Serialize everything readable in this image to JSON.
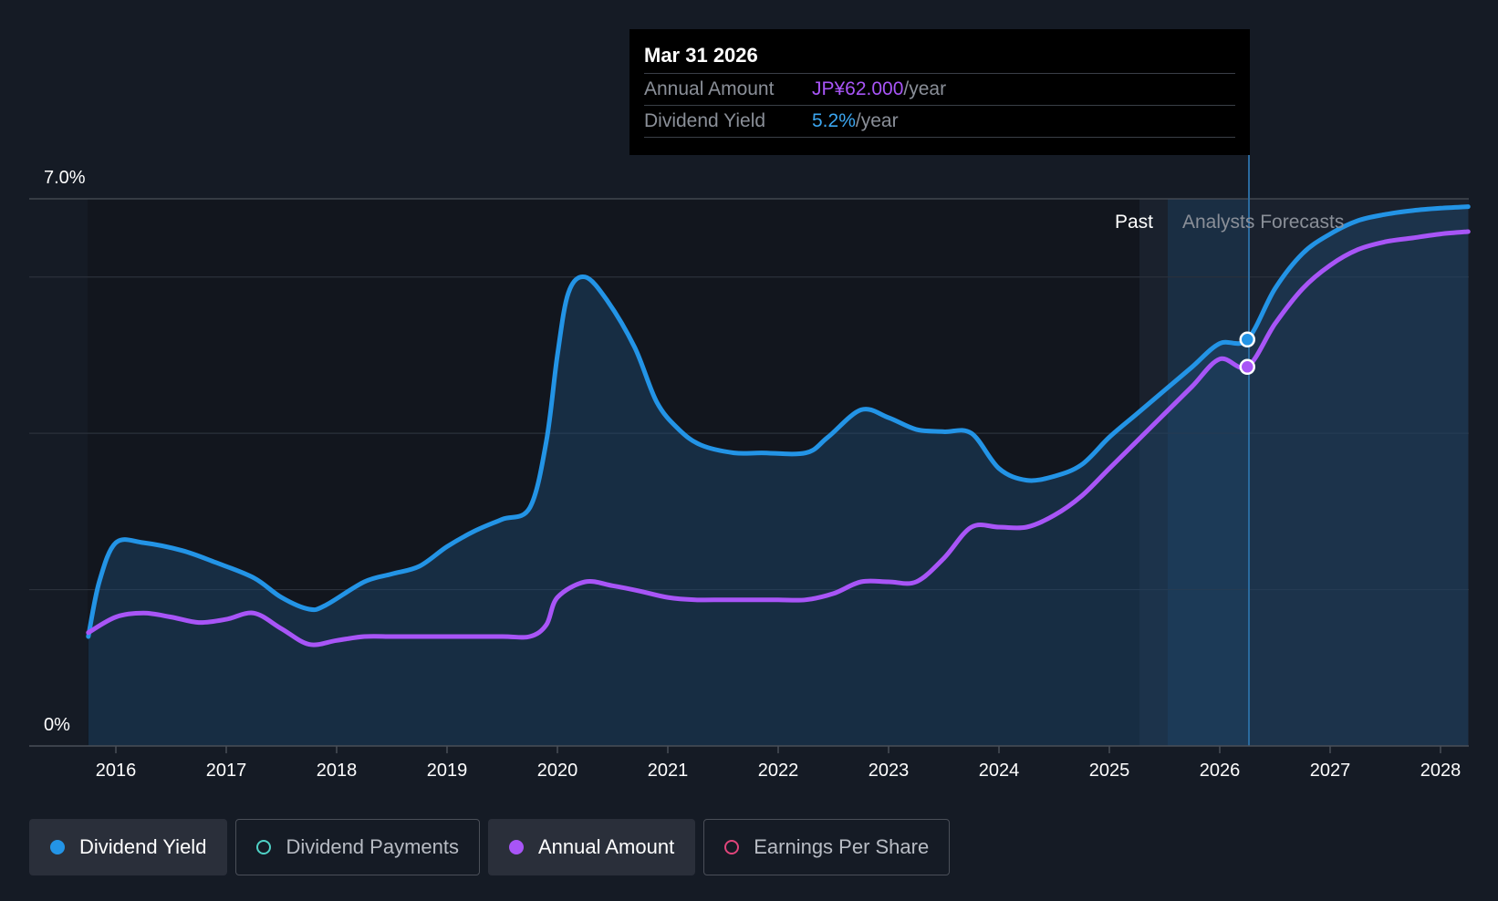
{
  "tooltip": {
    "date": "Mar 31 2026",
    "annual_amount_label": "Annual Amount",
    "annual_amount_value": "JP¥62.000",
    "annual_amount_unit": "/year",
    "dividend_yield_label": "Dividend Yield",
    "dividend_yield_value": "5.2%",
    "dividend_yield_unit": "/year"
  },
  "legend": [
    {
      "label": "Dividend Yield",
      "color": "#2394e6",
      "active": true,
      "filled": true
    },
    {
      "label": "Dividend Payments",
      "color": "#4fd1c5",
      "active": false,
      "filled": false
    },
    {
      "label": "Annual Amount",
      "color": "#a855f7",
      "active": true,
      "filled": true
    },
    {
      "label": "Earnings Per Share",
      "color": "#e0457b",
      "active": false,
      "filled": false
    }
  ],
  "chart_data": {
    "type": "line",
    "y_axis": {
      "top_label": "7.0%",
      "bottom_label": "0%",
      "ylim": [
        0,
        7
      ],
      "gridlines": [
        2,
        4,
        6,
        7
      ]
    },
    "x_axis": {
      "ticks": [
        "2016",
        "2017",
        "2018",
        "2019",
        "2020",
        "2021",
        "2022",
        "2023",
        "2024",
        "2025",
        "2026",
        "2027",
        "2028"
      ],
      "xlim": [
        2015.5,
        2028.25
      ]
    },
    "region_labels": {
      "past": "Past",
      "forecast": "Analysts Forecasts"
    },
    "forecast_start": 2025.25,
    "highlight_x": 2026.25,
    "series": [
      {
        "name": "Dividend Yield",
        "color": "#2394e6",
        "fill": true,
        "points": [
          [
            2015.75,
            1.4
          ],
          [
            2015.85,
            2.1
          ],
          [
            2016.0,
            2.6
          ],
          [
            2016.25,
            2.6
          ],
          [
            2016.6,
            2.5
          ],
          [
            2016.9,
            2.35
          ],
          [
            2017.25,
            2.15
          ],
          [
            2017.5,
            1.9
          ],
          [
            2017.75,
            1.75
          ],
          [
            2017.9,
            1.8
          ],
          [
            2018.25,
            2.1
          ],
          [
            2018.5,
            2.2
          ],
          [
            2018.75,
            2.3
          ],
          [
            2019.0,
            2.55
          ],
          [
            2019.25,
            2.75
          ],
          [
            2019.5,
            2.9
          ],
          [
            2019.75,
            3.05
          ],
          [
            2019.9,
            3.9
          ],
          [
            2020.0,
            5.0
          ],
          [
            2020.1,
            5.8
          ],
          [
            2020.25,
            6.0
          ],
          [
            2020.45,
            5.7
          ],
          [
            2020.7,
            5.1
          ],
          [
            2020.9,
            4.4
          ],
          [
            2021.1,
            4.05
          ],
          [
            2021.3,
            3.85
          ],
          [
            2021.6,
            3.75
          ],
          [
            2021.85,
            3.75
          ],
          [
            2022.25,
            3.75
          ],
          [
            2022.45,
            3.95
          ],
          [
            2022.75,
            4.3
          ],
          [
            2023.0,
            4.2
          ],
          [
            2023.25,
            4.05
          ],
          [
            2023.5,
            4.02
          ],
          [
            2023.75,
            4.0
          ],
          [
            2024.0,
            3.55
          ],
          [
            2024.25,
            3.4
          ],
          [
            2024.5,
            3.45
          ],
          [
            2024.75,
            3.6
          ],
          [
            2025.0,
            3.95
          ],
          [
            2025.25,
            4.25
          ],
          [
            2025.5,
            4.55
          ],
          [
            2025.75,
            4.85
          ],
          [
            2026.0,
            5.15
          ],
          [
            2026.25,
            5.2
          ],
          [
            2026.5,
            5.85
          ],
          [
            2026.75,
            6.3
          ],
          [
            2027.0,
            6.55
          ],
          [
            2027.25,
            6.72
          ],
          [
            2027.5,
            6.8
          ],
          [
            2027.75,
            6.85
          ],
          [
            2028.0,
            6.88
          ],
          [
            2028.25,
            6.9
          ]
        ]
      },
      {
        "name": "Annual Amount",
        "color": "#a855f7",
        "fill": false,
        "points": [
          [
            2015.75,
            1.45
          ],
          [
            2016.0,
            1.65
          ],
          [
            2016.25,
            1.7
          ],
          [
            2016.5,
            1.65
          ],
          [
            2016.75,
            1.58
          ],
          [
            2017.0,
            1.62
          ],
          [
            2017.25,
            1.7
          ],
          [
            2017.5,
            1.5
          ],
          [
            2017.75,
            1.3
          ],
          [
            2018.0,
            1.35
          ],
          [
            2018.25,
            1.4
          ],
          [
            2018.5,
            1.4
          ],
          [
            2018.75,
            1.4
          ],
          [
            2019.0,
            1.4
          ],
          [
            2019.5,
            1.4
          ],
          [
            2019.75,
            1.4
          ],
          [
            2019.9,
            1.55
          ],
          [
            2020.0,
            1.9
          ],
          [
            2020.25,
            2.1
          ],
          [
            2020.5,
            2.05
          ],
          [
            2020.75,
            1.98
          ],
          [
            2021.0,
            1.9
          ],
          [
            2021.25,
            1.87
          ],
          [
            2021.5,
            1.87
          ],
          [
            2021.75,
            1.87
          ],
          [
            2022.0,
            1.87
          ],
          [
            2022.25,
            1.87
          ],
          [
            2022.5,
            1.95
          ],
          [
            2022.75,
            2.1
          ],
          [
            2023.0,
            2.1
          ],
          [
            2023.25,
            2.1
          ],
          [
            2023.5,
            2.4
          ],
          [
            2023.75,
            2.8
          ],
          [
            2024.0,
            2.8
          ],
          [
            2024.25,
            2.8
          ],
          [
            2024.5,
            2.95
          ],
          [
            2024.75,
            3.2
          ],
          [
            2025.0,
            3.55
          ],
          [
            2025.25,
            3.9
          ],
          [
            2025.5,
            4.25
          ],
          [
            2025.75,
            4.6
          ],
          [
            2026.0,
            4.95
          ],
          [
            2026.25,
            4.85
          ],
          [
            2026.5,
            5.4
          ],
          [
            2026.75,
            5.85
          ],
          [
            2027.0,
            6.15
          ],
          [
            2027.25,
            6.35
          ],
          [
            2027.5,
            6.45
          ],
          [
            2027.75,
            6.5
          ],
          [
            2028.0,
            6.55
          ],
          [
            2028.25,
            6.58
          ]
        ]
      }
    ]
  }
}
